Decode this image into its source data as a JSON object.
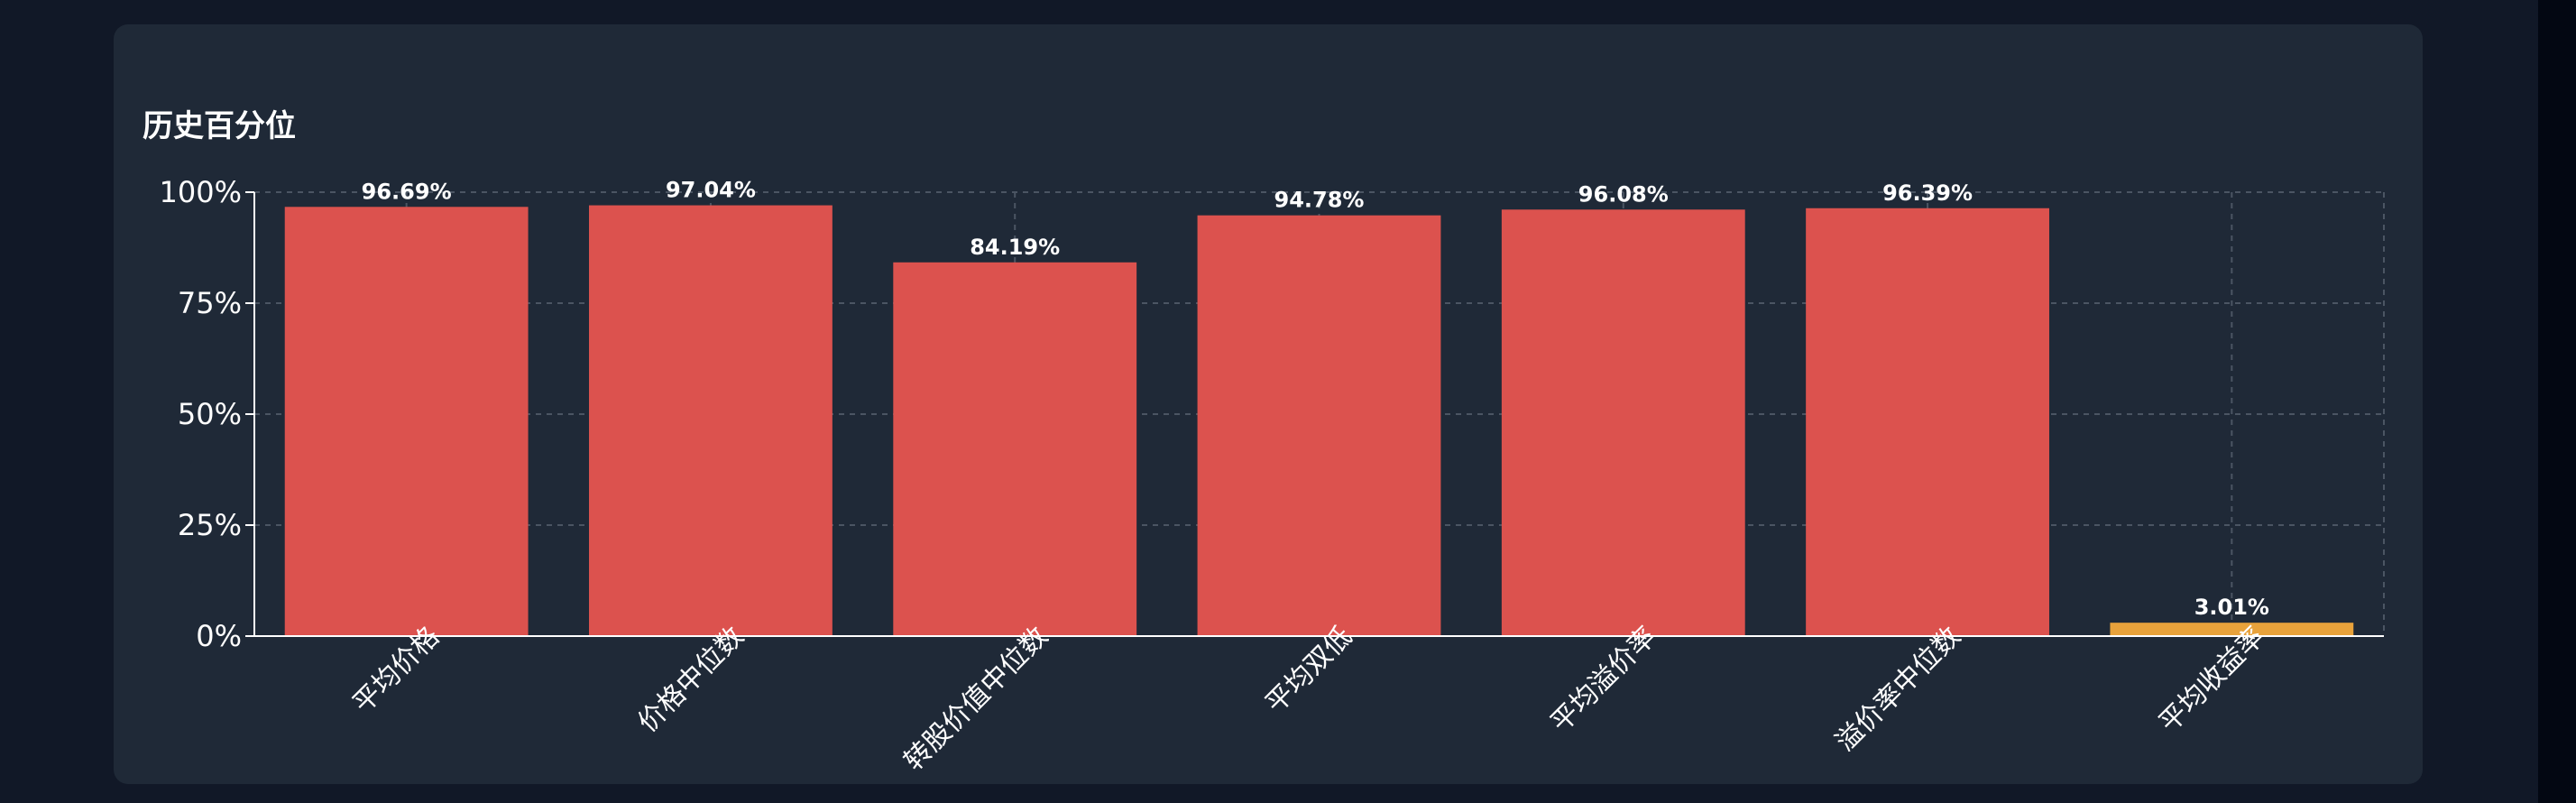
{
  "title": "历史百分位",
  "colors": {
    "background": "#111827",
    "card": "#1f2937",
    "up": "#dc524e",
    "low": "#e8a23b",
    "grid": "#4b5563",
    "axis": "#ffffff"
  },
  "chart_data": {
    "type": "bar",
    "title": "历史百分位",
    "categories": [
      "平均价格",
      "价格中位数",
      "转股价值中位数",
      "平均双低",
      "平均溢价率",
      "溢价率中位数",
      "平均收益率"
    ],
    "values": [
      96.69,
      97.04,
      84.19,
      94.78,
      96.08,
      96.39,
      3.01
    ],
    "data_labels": [
      "96.69%",
      "97.04%",
      "84.19%",
      "94.78%",
      "96.08%",
      "96.39%",
      "3.01%"
    ],
    "bar_colors": [
      "#dc524e",
      "#dc524e",
      "#dc524e",
      "#dc524e",
      "#dc524e",
      "#dc524e",
      "#e8a23b"
    ],
    "ylim": [
      0,
      100
    ],
    "yticks": [
      0,
      25,
      50,
      75,
      100
    ],
    "ytick_labels": [
      "0%",
      "25%",
      "50%",
      "75%",
      "100%"
    ],
    "xlabel": "",
    "ylabel": "",
    "grid": true,
    "legend": "none"
  }
}
